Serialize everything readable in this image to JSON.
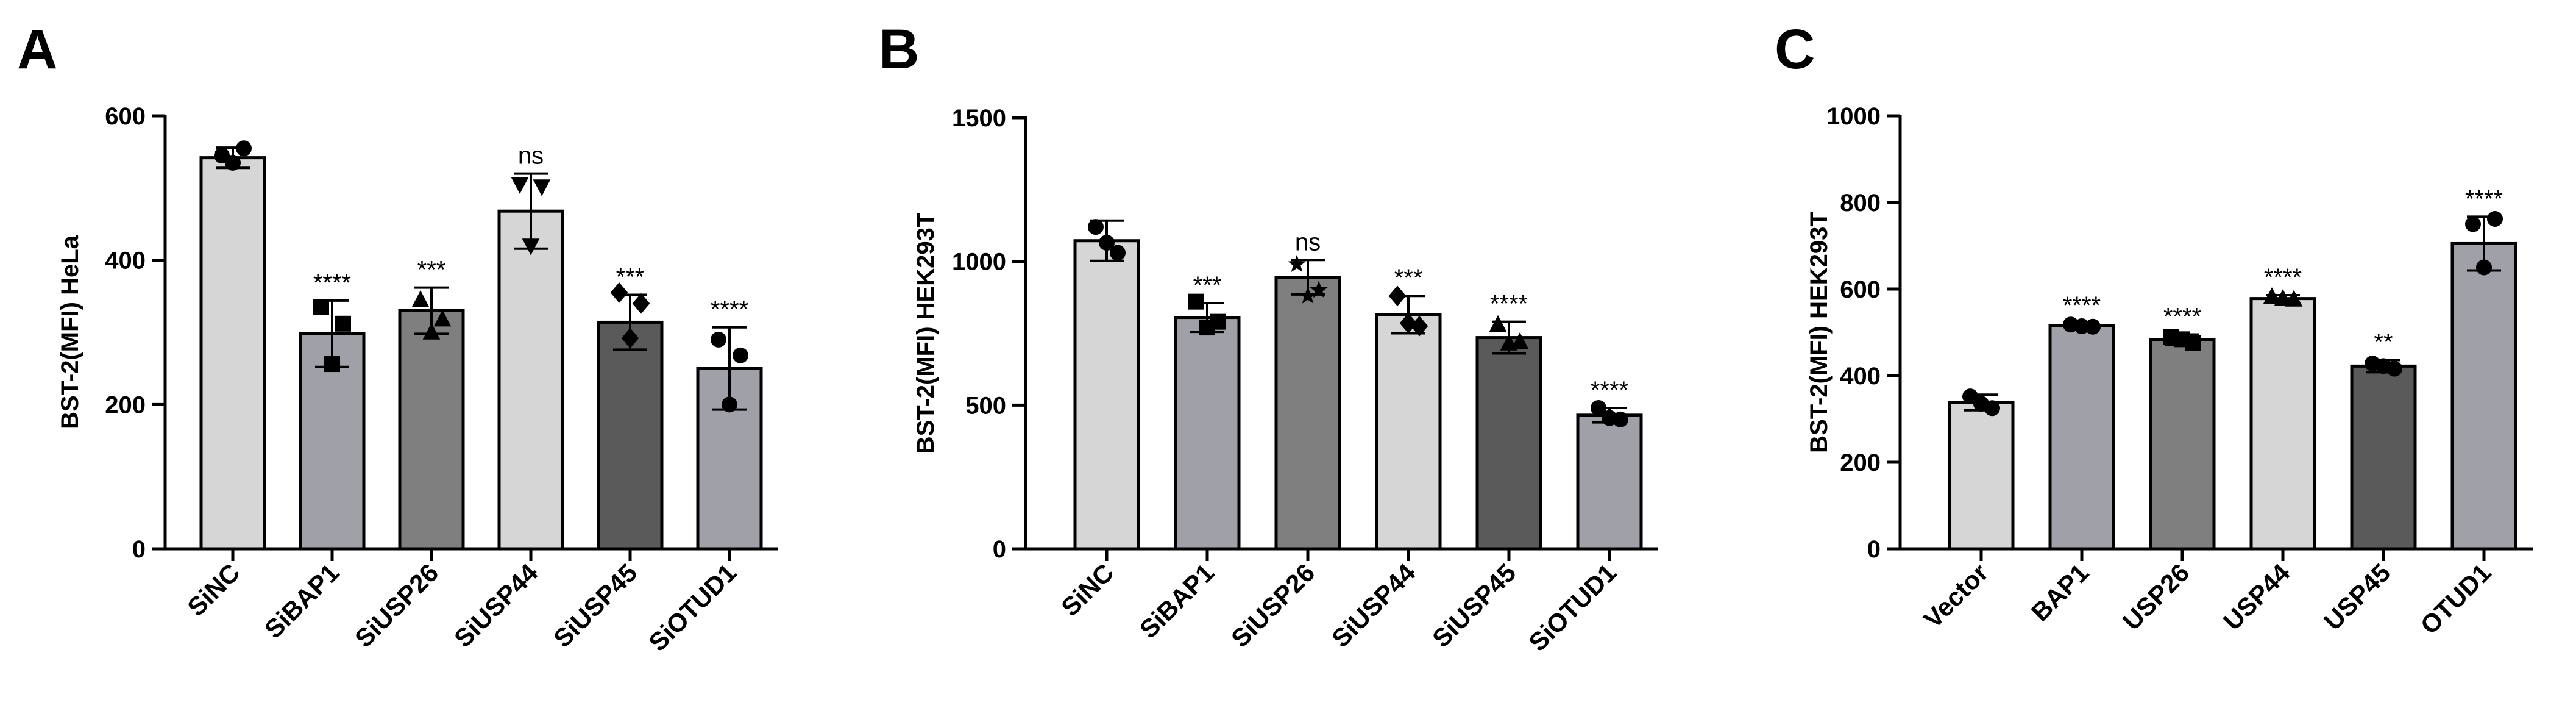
{
  "chart_data": [
    {
      "type": "bar",
      "panel": "A",
      "ylabel": "BST-2(MFI) HeLa",
      "ylim": [
        0,
        600
      ],
      "yticks": [
        0,
        200,
        400,
        600
      ],
      "categories": [
        "SiNC",
        "SiBAP1",
        "SiUSP26",
        "SiUSP44",
        "SiUSP45",
        "SiOTUD1"
      ],
      "values": [
        542,
        298,
        330,
        468,
        314,
        250
      ],
      "errors": [
        14,
        46,
        32,
        52,
        38,
        57
      ],
      "points": [
        [
          545,
          555,
          535
        ],
        [
          335,
          312,
          256
        ],
        [
          345,
          318,
          300
        ],
        [
          505,
          502,
          420
        ],
        [
          355,
          340,
          292
        ],
        [
          290,
          268,
          200
        ]
      ],
      "markers": [
        "circle",
        "square",
        "triangle",
        "triangle-down",
        "diamond",
        "circle"
      ],
      "significance": [
        "",
        "****",
        "***",
        "ns",
        "***",
        "****"
      ],
      "bar_colors": [
        "#d6d6d6",
        "#a0a0a8",
        "#7f7f7f",
        "#d6d6d6",
        "#5a5a5a",
        "#a0a0a8"
      ]
    },
    {
      "type": "bar",
      "panel": "B",
      "ylabel": "BST-2(MFI) HEK293T",
      "ylim": [
        0,
        1500
      ],
      "yticks": [
        0,
        500,
        1000,
        1500
      ],
      "categories": [
        "SiNC",
        "SiBAP1",
        "SiUSP26",
        "SiUSP44",
        "SiUSP45",
        "SiOTUD1"
      ],
      "values": [
        1072,
        805,
        945,
        815,
        735,
        465
      ],
      "errors": [
        70,
        50,
        60,
        65,
        55,
        25
      ],
      "points": [
        [
          1120,
          1030,
          1065
        ],
        [
          860,
          790,
          770
        ],
        [
          990,
          900,
          880
        ],
        [
          880,
          775,
          785
        ],
        [
          780,
          720,
          715
        ],
        [
          490,
          450,
          455
        ]
      ],
      "markers": [
        "circle",
        "square",
        "star",
        "diamond",
        "triangle",
        "circle"
      ],
      "significance": [
        "",
        "***",
        "ns",
        "***",
        "****",
        "****"
      ],
      "bar_colors": [
        "#d6d6d6",
        "#a0a0a8",
        "#7f7f7f",
        "#d6d6d6",
        "#5a5a5a",
        "#a0a0a8"
      ]
    },
    {
      "type": "bar",
      "panel": "C",
      "ylabel": "BST-2(MFI) HEK293T",
      "ylim": [
        0,
        1000
      ],
      "yticks": [
        0,
        200,
        400,
        600,
        800,
        1000
      ],
      "categories": [
        "Vector",
        "BAP1",
        "USP26",
        "USP44",
        "USP45",
        "OTUD1"
      ],
      "values": [
        338,
        515,
        483,
        578,
        422,
        705
      ],
      "errors": [
        18,
        6,
        12,
        8,
        14,
        62
      ],
      "points": [
        [
          352,
          325,
          335
        ],
        [
          518,
          513,
          514
        ],
        [
          490,
          475,
          484
        ],
        [
          582,
          576,
          578
        ],
        [
          428,
          416,
          422
        ],
        [
          750,
          762,
          650
        ]
      ],
      "markers": [
        "circle",
        "circle",
        "square",
        "triangle",
        "circle",
        "circle"
      ],
      "significance": [
        "",
        "****",
        "****",
        "****",
        "**",
        "****"
      ],
      "bar_colors": [
        "#d6d6d6",
        "#a0a0a8",
        "#7f7f7f",
        "#d6d6d6",
        "#5a5a5a",
        "#a0a0a8"
      ]
    }
  ]
}
